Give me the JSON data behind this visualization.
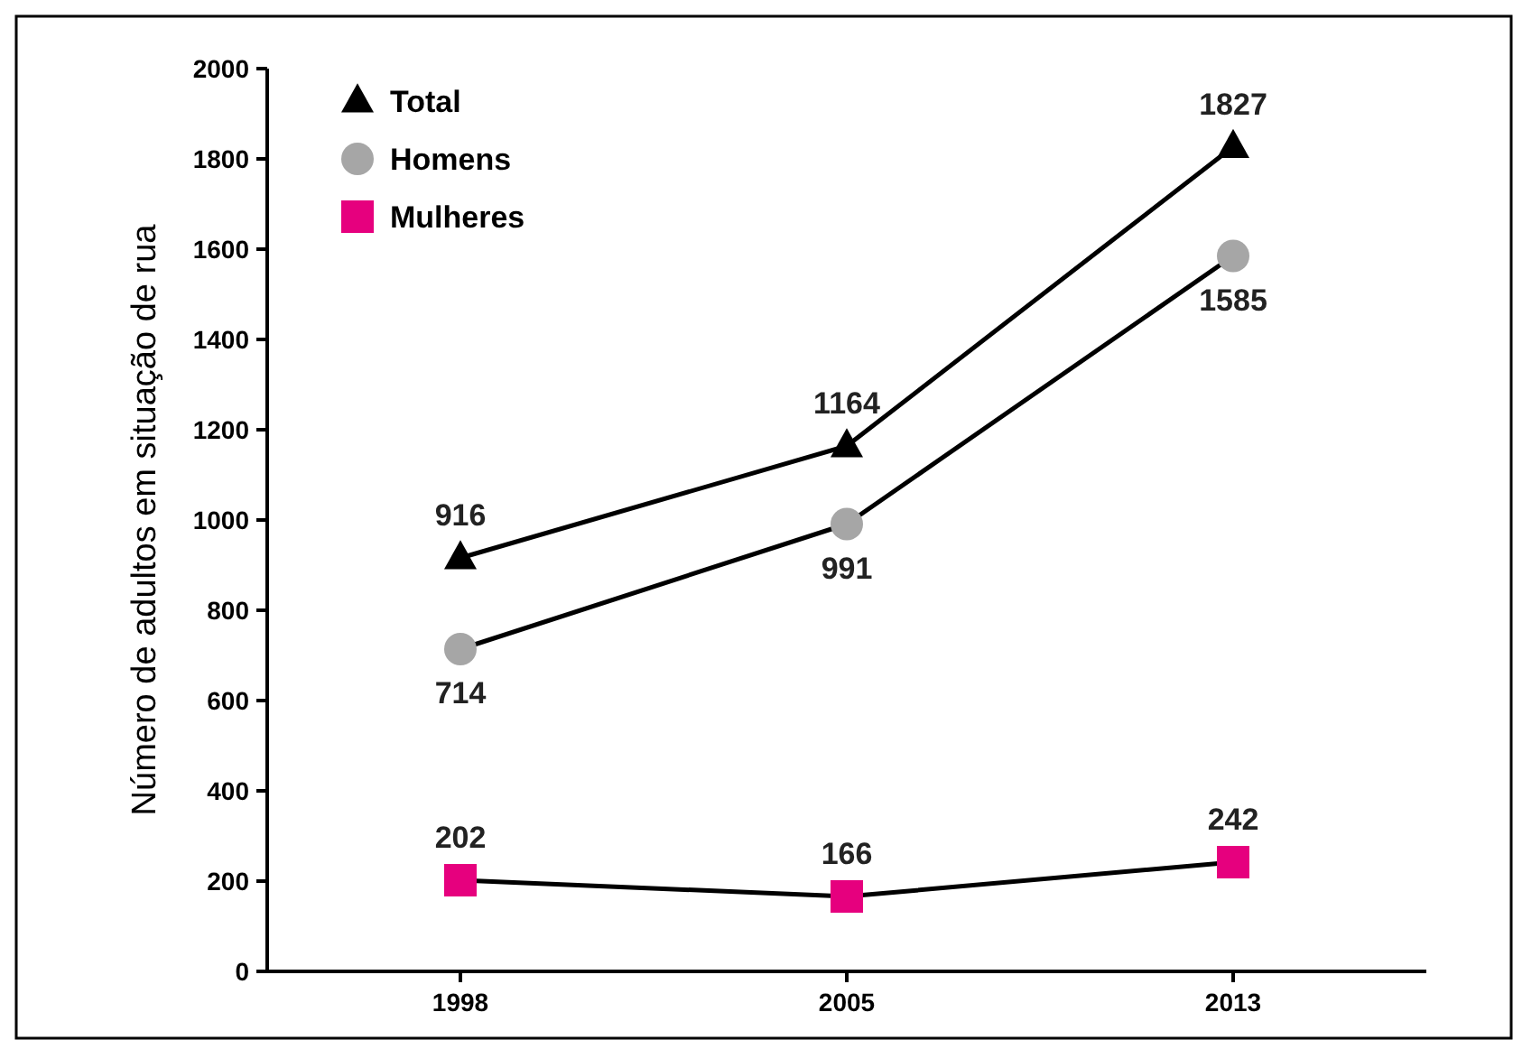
{
  "chart_data": {
    "type": "line",
    "ylabel": "Número de adultos em situação de rua",
    "categories": [
      "1998",
      "2005",
      "2013"
    ],
    "series": [
      {
        "name": "Total",
        "color": "#000000",
        "marker": "triangle",
        "values": [
          916,
          1164,
          1827
        ]
      },
      {
        "name": "Homens",
        "color": "#a6a6a6",
        "marker": "circle",
        "values": [
          714,
          991,
          1585
        ]
      },
      {
        "name": "Mulheres",
        "color": "#e6007e",
        "marker": "square",
        "values": [
          202,
          166,
          242
        ]
      }
    ],
    "ylim": [
      0,
      2000
    ],
    "yticks": [
      0,
      200,
      400,
      600,
      800,
      1000,
      1200,
      1400,
      1600,
      1800,
      2000
    ],
    "data_labels": true,
    "legend": "top left",
    "grid": false
  }
}
